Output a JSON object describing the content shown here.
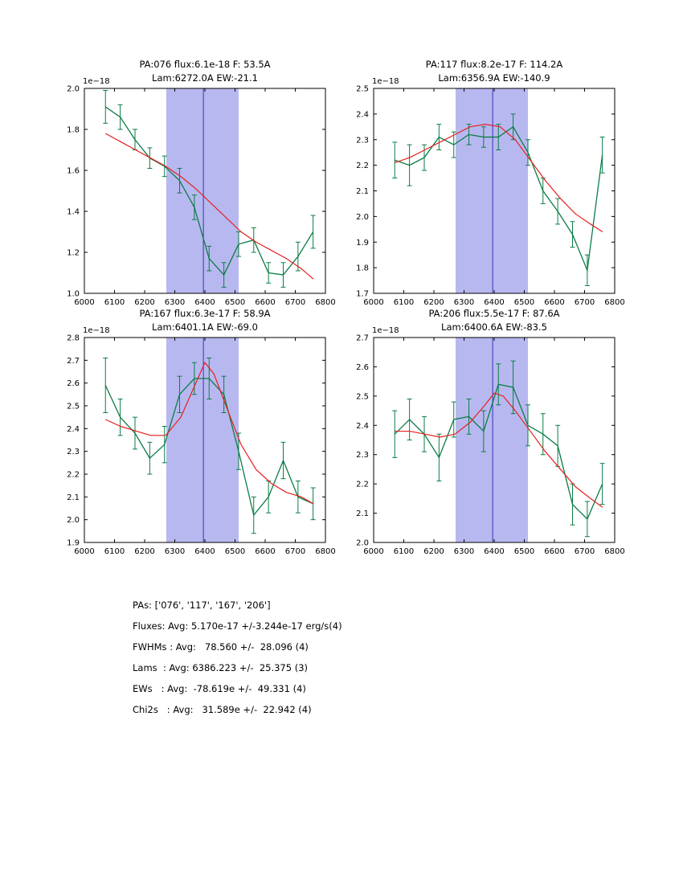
{
  "figure": {
    "background": "#ffffff",
    "band_color": "#b8b8f0",
    "band_range": [
      6272,
      6512
    ],
    "vline_x": 6395,
    "vline_color": "#3333bb",
    "data_color": "#0a7d46",
    "fit_color": "#e62020",
    "frame_color": "#000000",
    "x_range": [
      6000,
      6800
    ],
    "x_ticks": [
      6000,
      6100,
      6200,
      6300,
      6400,
      6500,
      6600,
      6700,
      6800
    ]
  },
  "chart_data": [
    {
      "type": "line",
      "title_line1": "PA:076 flux:6.1e-18 F: 53.5A",
      "title_line2": "Lam:6272.0A EW:-21.1",
      "offset": "1e−18",
      "xlabel": "",
      "ylabel": "",
      "ylim": [
        1.0,
        2.0
      ],
      "y_ticks": [
        1.0,
        1.2,
        1.4,
        1.6,
        1.8,
        2.0
      ],
      "x": [
        6070,
        6119,
        6168,
        6217,
        6266,
        6316,
        6365,
        6414,
        6463,
        6512,
        6562,
        6611,
        6660,
        6709,
        6759
      ],
      "y": [
        1.91,
        1.86,
        1.75,
        1.66,
        1.62,
        1.55,
        1.42,
        1.17,
        1.09,
        1.24,
        1.26,
        1.1,
        1.09,
        1.18,
        1.3
      ],
      "yerr": [
        0.08,
        0.06,
        0.05,
        0.05,
        0.05,
        0.06,
        0.06,
        0.06,
        0.06,
        0.06,
        0.06,
        0.05,
        0.06,
        0.07,
        0.08
      ],
      "fit_x": [
        6070,
        6120,
        6170,
        6220,
        6270,
        6320,
        6370,
        6420,
        6470,
        6520,
        6570,
        6620,
        6670,
        6720,
        6760
      ],
      "fit_y": [
        1.78,
        1.74,
        1.7,
        1.66,
        1.62,
        1.57,
        1.51,
        1.44,
        1.37,
        1.3,
        1.25,
        1.21,
        1.17,
        1.12,
        1.07
      ]
    },
    {
      "type": "line",
      "title_line1": "PA:117 flux:8.2e-17 F: 114.2A",
      "title_line2": "Lam:6356.9A EW:-140.9",
      "offset": "1e−18",
      "xlabel": "",
      "ylabel": "",
      "ylim": [
        1.7,
        2.5
      ],
      "y_ticks": [
        1.7,
        1.8,
        1.9,
        2.0,
        2.1,
        2.2,
        2.3,
        2.4,
        2.5
      ],
      "x": [
        6070,
        6119,
        6168,
        6217,
        6266,
        6316,
        6365,
        6414,
        6463,
        6512,
        6562,
        6611,
        6660,
        6709,
        6759
      ],
      "y": [
        2.22,
        2.2,
        2.23,
        2.31,
        2.28,
        2.32,
        2.31,
        2.31,
        2.35,
        2.25,
        2.1,
        2.02,
        1.93,
        1.79,
        2.24
      ],
      "yerr": [
        0.07,
        0.08,
        0.05,
        0.05,
        0.05,
        0.04,
        0.04,
        0.05,
        0.05,
        0.05,
        0.05,
        0.05,
        0.05,
        0.06,
        0.07
      ],
      "fit_x": [
        6070,
        6120,
        6170,
        6220,
        6270,
        6320,
        6370,
        6420,
        6470,
        6520,
        6570,
        6620,
        6670,
        6720,
        6760
      ],
      "fit_y": [
        2.21,
        2.23,
        2.26,
        2.29,
        2.32,
        2.35,
        2.36,
        2.35,
        2.3,
        2.22,
        2.14,
        2.07,
        2.01,
        1.97,
        1.94
      ]
    },
    {
      "type": "line",
      "title_line1": "PA:167 flux:6.3e-17 F: 58.9A",
      "title_line2": "Lam:6401.1A EW:-69.0",
      "offset": "1e−18",
      "xlabel": "",
      "ylabel": "",
      "ylim": [
        1.9,
        2.8
      ],
      "y_ticks": [
        1.9,
        2.0,
        2.1,
        2.2,
        2.3,
        2.4,
        2.5,
        2.6,
        2.7,
        2.8
      ],
      "x": [
        6070,
        6119,
        6168,
        6217,
        6266,
        6316,
        6365,
        6414,
        6463,
        6512,
        6562,
        6611,
        6660,
        6709,
        6759
      ],
      "y": [
        2.59,
        2.45,
        2.38,
        2.27,
        2.33,
        2.55,
        2.62,
        2.62,
        2.55,
        2.3,
        2.02,
        2.1,
        2.26,
        2.1,
        2.07
      ],
      "yerr": [
        0.12,
        0.08,
        0.07,
        0.07,
        0.08,
        0.08,
        0.07,
        0.09,
        0.08,
        0.08,
        0.08,
        0.07,
        0.08,
        0.07,
        0.07
      ],
      "fit_x": [
        6070,
        6120,
        6170,
        6220,
        6270,
        6320,
        6370,
        6400,
        6430,
        6470,
        6520,
        6570,
        6620,
        6670,
        6720,
        6760
      ],
      "fit_y": [
        2.44,
        2.41,
        2.39,
        2.37,
        2.37,
        2.45,
        2.6,
        2.69,
        2.64,
        2.5,
        2.33,
        2.22,
        2.16,
        2.12,
        2.1,
        2.07
      ]
    },
    {
      "type": "line",
      "title_line1": "PA:206 flux:5.5e-17 F: 87.6A",
      "title_line2": "Lam:6400.6A EW:-83.5",
      "offset": "1e−18",
      "xlabel": "",
      "ylabel": "",
      "ylim": [
        2.0,
        2.7
      ],
      "y_ticks": [
        2.0,
        2.1,
        2.2,
        2.3,
        2.4,
        2.5,
        2.6,
        2.7
      ],
      "x": [
        6070,
        6119,
        6168,
        6217,
        6266,
        6316,
        6365,
        6414,
        6463,
        6512,
        6562,
        6611,
        6660,
        6709,
        6759
      ],
      "y": [
        2.37,
        2.42,
        2.37,
        2.29,
        2.42,
        2.43,
        2.38,
        2.54,
        2.53,
        2.4,
        2.37,
        2.33,
        2.13,
        2.08,
        2.2
      ],
      "yerr": [
        0.08,
        0.07,
        0.06,
        0.08,
        0.06,
        0.06,
        0.07,
        0.07,
        0.09,
        0.07,
        0.07,
        0.07,
        0.07,
        0.06,
        0.07
      ],
      "fit_x": [
        6070,
        6120,
        6170,
        6220,
        6270,
        6320,
        6370,
        6400,
        6430,
        6470,
        6520,
        6570,
        6620,
        6670,
        6720,
        6760
      ],
      "fit_y": [
        2.38,
        2.38,
        2.37,
        2.36,
        2.37,
        2.41,
        2.47,
        2.51,
        2.5,
        2.45,
        2.38,
        2.31,
        2.25,
        2.19,
        2.15,
        2.12
      ]
    }
  ],
  "summary": {
    "lines": [
      "PAs: ['076', '117', '167', '206']",
      "Fluxes: Avg: 5.170e-17 +/-3.244e-17 erg/s(4)",
      "FWHMs : Avg:   78.560 +/-  28.096 (4)",
      "Lams  : Avg: 6386.223 +/-  25.375 (3)",
      "EWs   : Avg:  -78.619e +/-  49.331 (4)",
      "Chi2s   : Avg:   31.589e +/-  22.942 (4)"
    ]
  }
}
